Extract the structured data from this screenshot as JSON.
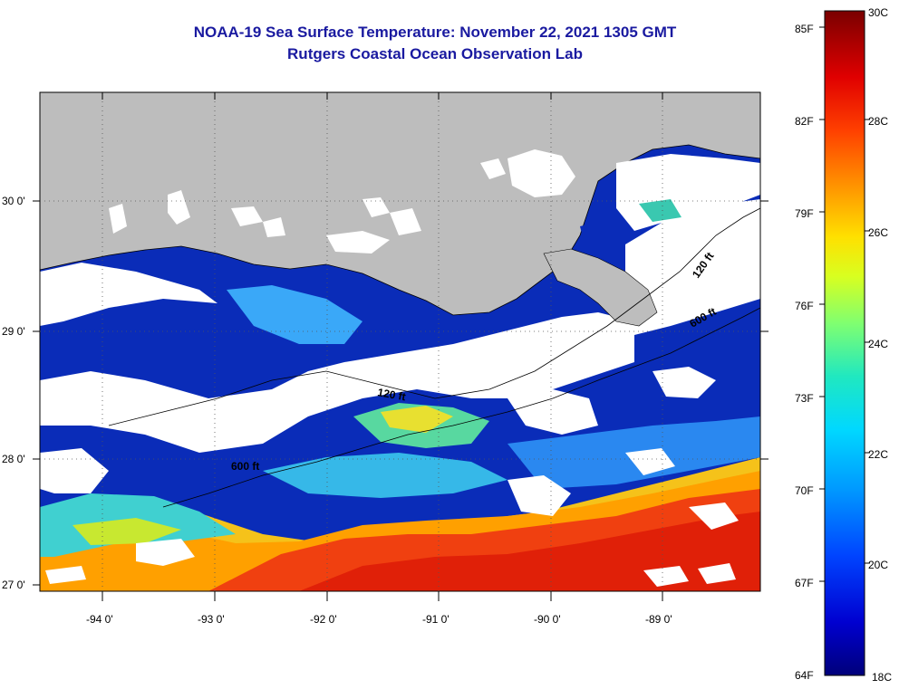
{
  "title": "NOAA-19 Sea Surface Temperature:  November 22, 2021 1305 GMT",
  "subtitle": "Rutgers Coastal Ocean Observation Lab",
  "lat_labels": [
    "30 0'",
    "29 0'",
    "28 0'",
    "27 0'"
  ],
  "lon_labels": [
    "-94 0'",
    "-93 0'",
    "-92 0'",
    "-91 0'",
    "-90 0'",
    "-89 0'"
  ],
  "contour_labels": [
    "120 ft",
    "600 ft",
    "120 ft",
    "600 ft"
  ],
  "colorbar": {
    "fahrenheit": [
      "85F",
      "82F",
      "79F",
      "76F",
      "73F",
      "70F",
      "67F",
      "64F"
    ],
    "celsius": [
      "30C",
      "28C",
      "26C",
      "24C",
      "22C",
      "20C",
      "18C"
    ]
  },
  "colors": {
    "land": "#bdbdbd",
    "cloud": "#ffffff",
    "title": "#1a1aa0"
  }
}
